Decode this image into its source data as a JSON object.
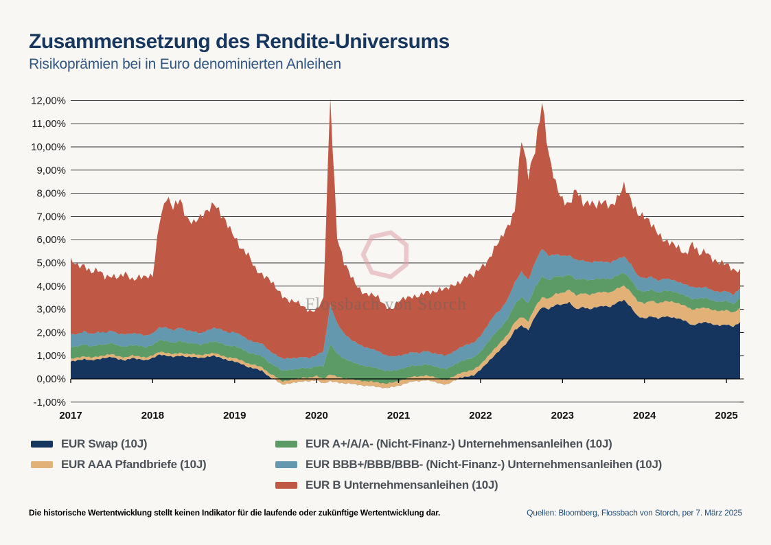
{
  "header": {
    "title": "Zusammensetzung des Rendite-Universums",
    "subtitle": "Risikoprämien bei in Euro denominierten Anleihen"
  },
  "watermark": {
    "text": "Flossbach von Storch"
  },
  "footer": {
    "disclaimer": "Die historische Wertentwicklung stellt keinen Indikator für die laufende oder zukünftige Wertentwicklung dar.",
    "source": "Quellen: Bloomberg, Flossbach von Storch, per 7. März 2025"
  },
  "chart_data": {
    "type": "area",
    "stacked": true,
    "unit": "percent",
    "grid": true,
    "legend_position": "bottom",
    "x": {
      "start": "2017-01",
      "end": "2025-03",
      "points_per_year": 12,
      "tick_labels": [
        "2017",
        "2018",
        "2019",
        "2020",
        "2021",
        "2022",
        "2023",
        "2024",
        "2025"
      ]
    },
    "y": {
      "min": -1,
      "max": 12,
      "step": 1,
      "tick_labels": [
        "12,00%",
        "11,00%",
        "10,00%",
        "9,00%",
        "8,00%",
        "7,00%",
        "6,00%",
        "5,00%",
        "4,00%",
        "3,00%",
        "2,00%",
        "1,00%",
        "0,00%",
        "-1,00%"
      ]
    },
    "series": [
      {
        "name": "EUR Swap (10J)",
        "color": "#15355f",
        "values": [
          0.75,
          0.8,
          0.85,
          0.8,
          0.85,
          0.9,
          0.95,
          0.85,
          0.8,
          0.9,
          0.85,
          0.8,
          0.9,
          1.05,
          1.0,
          0.95,
          1.0,
          0.95,
          0.95,
          0.9,
          0.95,
          1.0,
          0.9,
          0.8,
          0.75,
          0.65,
          0.5,
          0.45,
          0.35,
          0.1,
          -0.05,
          -0.25,
          -0.2,
          -0.15,
          -0.1,
          -0.1,
          -0.05,
          -0.2,
          -0.1,
          -0.15,
          -0.2,
          -0.2,
          -0.25,
          -0.3,
          -0.3,
          -0.35,
          -0.4,
          -0.35,
          -0.3,
          -0.2,
          -0.1,
          -0.1,
          -0.05,
          -0.1,
          -0.2,
          -0.25,
          -0.1,
          0.05,
          0.1,
          0.15,
          0.4,
          0.7,
          1.0,
          1.3,
          1.6,
          2.1,
          2.3,
          2.1,
          2.7,
          3.1,
          3.0,
          3.2,
          3.2,
          3.3,
          3.0,
          3.1,
          3.0,
          3.1,
          3.15,
          3.1,
          3.3,
          3.4,
          3.1,
          2.7,
          2.6,
          2.7,
          2.6,
          2.7,
          2.65,
          2.6,
          2.5,
          2.3,
          2.4,
          2.45,
          2.35,
          2.3,
          2.35,
          2.25,
          2.45
        ]
      },
      {
        "name": "EUR AAA Pfandbriefe (10J)",
        "color": "#e2b177",
        "values": [
          0.12,
          0.12,
          0.12,
          0.12,
          0.12,
          0.12,
          0.12,
          0.12,
          0.12,
          0.12,
          0.12,
          0.12,
          0.12,
          0.12,
          0.12,
          0.12,
          0.12,
          0.12,
          0.12,
          0.12,
          0.12,
          0.12,
          0.12,
          0.12,
          0.15,
          0.15,
          0.15,
          0.15,
          0.15,
          0.15,
          0.15,
          0.15,
          0.15,
          0.15,
          0.15,
          0.15,
          0.18,
          0.2,
          0.3,
          0.25,
          0.22,
          0.2,
          0.2,
          0.2,
          0.2,
          0.2,
          0.2,
          0.2,
          0.2,
          0.2,
          0.2,
          0.2,
          0.2,
          0.2,
          0.2,
          0.2,
          0.2,
          0.2,
          0.22,
          0.25,
          0.22,
          0.25,
          0.28,
          0.3,
          0.32,
          0.35,
          0.38,
          0.38,
          0.4,
          0.42,
          0.45,
          0.48,
          0.5,
          0.55,
          0.6,
          0.6,
          0.62,
          0.62,
          0.6,
          0.62,
          0.6,
          0.62,
          0.65,
          0.65,
          0.65,
          0.68,
          0.65,
          0.65,
          0.68,
          0.65,
          0.65,
          0.68,
          0.65,
          0.62,
          0.62,
          0.62,
          0.62,
          0.6,
          0.62
        ]
      },
      {
        "name": "EUR A+/A/A- (Nicht-Finanz-) Unternehmensanleihen (10J)",
        "color": "#5c9b65",
        "values": [
          0.5,
          0.48,
          0.52,
          0.47,
          0.5,
          0.46,
          0.48,
          0.45,
          0.47,
          0.44,
          0.46,
          0.44,
          0.45,
          0.5,
          0.52,
          0.48,
          0.52,
          0.48,
          0.46,
          0.45,
          0.48,
          0.5,
          0.52,
          0.5,
          0.52,
          0.5,
          0.48,
          0.46,
          0.48,
          0.46,
          0.44,
          0.46,
          0.44,
          0.42,
          0.42,
          0.4,
          0.42,
          0.55,
          1.3,
          1.0,
          0.85,
          0.75,
          0.7,
          0.65,
          0.62,
          0.6,
          0.55,
          0.5,
          0.5,
          0.48,
          0.48,
          0.46,
          0.48,
          0.46,
          0.48,
          0.48,
          0.48,
          0.5,
          0.52,
          0.52,
          0.55,
          0.6,
          0.65,
          0.62,
          0.68,
          0.75,
          0.85,
          0.78,
          0.85,
          0.9,
          0.8,
          0.75,
          0.7,
          0.65,
          0.68,
          0.62,
          0.62,
          0.6,
          0.58,
          0.58,
          0.56,
          0.56,
          0.54,
          0.5,
          0.5,
          0.48,
          0.46,
          0.46,
          0.45,
          0.44,
          0.44,
          0.46,
          0.42,
          0.42,
          0.4,
          0.4,
          0.4,
          0.38,
          0.4
        ]
      },
      {
        "name": "EUR BBB+/BBB/BBB- (Nicht-Finanz-) Unternehmensanleihen (10J)",
        "color": "#6498af",
        "values": [
          0.55,
          0.53,
          0.57,
          0.54,
          0.55,
          0.52,
          0.53,
          0.52,
          0.54,
          0.5,
          0.52,
          0.5,
          0.5,
          0.55,
          0.58,
          0.54,
          0.58,
          0.54,
          0.52,
          0.5,
          0.54,
          0.58,
          0.6,
          0.58,
          0.6,
          0.58,
          0.55,
          0.52,
          0.55,
          0.52,
          0.5,
          0.52,
          0.5,
          0.48,
          0.48,
          0.45,
          0.48,
          0.65,
          1.7,
          1.3,
          1.1,
          0.95,
          0.88,
          0.82,
          0.78,
          0.75,
          0.68,
          0.62,
          0.6,
          0.58,
          0.58,
          0.55,
          0.58,
          0.55,
          0.58,
          0.58,
          0.58,
          0.6,
          0.64,
          0.64,
          0.68,
          0.75,
          0.82,
          0.78,
          0.85,
          0.95,
          1.1,
          1.0,
          1.1,
          1.2,
          1.05,
          0.95,
          0.9,
          0.82,
          0.85,
          0.78,
          0.78,
          0.75,
          0.72,
          0.72,
          0.7,
          0.7,
          0.66,
          0.6,
          0.58,
          0.55,
          0.52,
          0.52,
          0.5,
          0.48,
          0.48,
          0.52,
          0.46,
          0.46,
          0.44,
          0.42,
          0.42,
          0.4,
          0.42
        ]
      },
      {
        "name": "EUR B Unternehmensanleihen (10J)",
        "color": "#bf5844",
        "values": [
          3.13,
          2.92,
          2.89,
          2.67,
          2.63,
          2.4,
          2.42,
          2.41,
          2.57,
          2.34,
          2.5,
          2.49,
          2.43,
          4.68,
          5.63,
          5.21,
          5.53,
          4.91,
          4.65,
          4.93,
          5.21,
          5.45,
          4.86,
          4.6,
          4.18,
          3.72,
          3.62,
          3.17,
          3.02,
          3.07,
          2.86,
          2.72,
          2.51,
          2.4,
          2.15,
          2.05,
          1.97,
          2.2,
          8.9,
          3.8,
          3.03,
          2.7,
          2.47,
          2.33,
          2.3,
          2.3,
          2.17,
          2.03,
          2.3,
          2.44,
          2.44,
          2.44,
          2.49,
          2.64,
          2.84,
          2.84,
          2.84,
          2.85,
          3.02,
          2.84,
          2.95,
          2.8,
          2.85,
          3.0,
          3.15,
          3.15,
          5.67,
          4.44,
          4.95,
          6.38,
          4.2,
          3.02,
          2.5,
          2.18,
          2.97,
          2.5,
          2.68,
          2.33,
          2.55,
          2.48,
          2.64,
          2.97,
          2.75,
          2.75,
          2.67,
          2.19,
          2.07,
          1.67,
          1.52,
          1.43,
          1.33,
          1.94,
          1.37,
          1.55,
          1.39,
          1.26,
          1.11,
          1.07,
          0.86
        ]
      }
    ]
  }
}
